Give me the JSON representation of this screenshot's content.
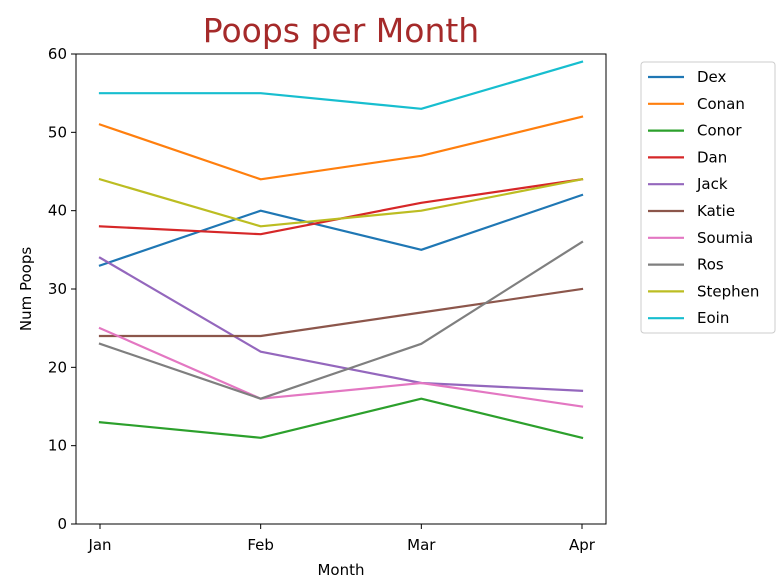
{
  "chart_data": {
    "type": "line",
    "title": "Poops per Month",
    "title_color": "#a52a2a",
    "xlabel": "Month",
    "ylabel": "Num Poops",
    "categories": [
      "Jan",
      "Feb",
      "Mar",
      "Apr"
    ],
    "ylim": [
      0,
      60
    ],
    "yticks": [
      "0",
      "10",
      "20",
      "30",
      "40",
      "50",
      "60"
    ],
    "grid": false,
    "legend_placement": "outside-top-right",
    "series": [
      {
        "name": "Dex",
        "color": "#1f77b4",
        "values": [
          33,
          40,
          35,
          42
        ]
      },
      {
        "name": "Conan",
        "color": "#ff7f0e",
        "values": [
          51,
          44,
          47,
          52
        ]
      },
      {
        "name": "Conor",
        "color": "#2ca02c",
        "values": [
          13,
          11,
          16,
          11
        ]
      },
      {
        "name": "Dan",
        "color": "#d62728",
        "values": [
          38,
          37,
          41,
          44
        ]
      },
      {
        "name": "Jack",
        "color": "#9467bd",
        "values": [
          34,
          22,
          18,
          17
        ]
      },
      {
        "name": "Katie",
        "color": "#8c564b",
        "values": [
          24,
          24,
          27,
          30
        ]
      },
      {
        "name": "Soumia",
        "color": "#e377c2",
        "values": [
          25,
          16,
          18,
          15
        ]
      },
      {
        "name": "Ros",
        "color": "#7f7f7f",
        "values": [
          23,
          16,
          23,
          36
        ]
      },
      {
        "name": "Stephen",
        "color": "#bcbd22",
        "values": [
          44,
          38,
          40,
          44
        ]
      },
      {
        "name": "Eoin",
        "color": "#17becf",
        "values": [
          55,
          55,
          53,
          59
        ]
      }
    ]
  }
}
